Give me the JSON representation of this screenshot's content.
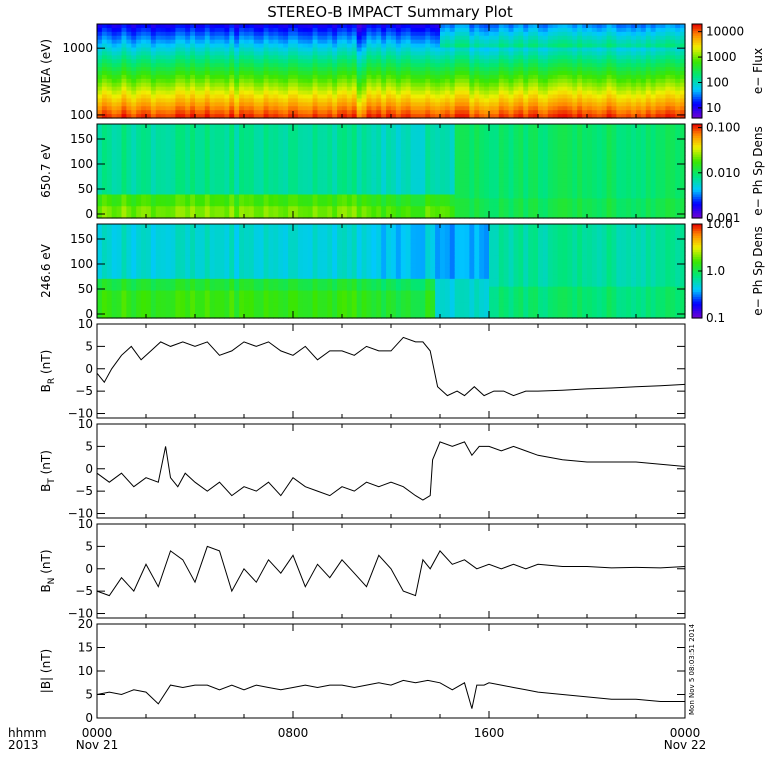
{
  "title": "STEREO-B IMPACT Summary Plot",
  "xaxis": {
    "corner_label_1": "hhmm",
    "corner_label_2": "2013",
    "tick_labels": [
      "0000",
      "0800",
      "1600",
      "0000"
    ],
    "date_labels": [
      "Nov 21",
      "",
      "",
      "Nov 22"
    ],
    "range_hours": [
      0,
      24
    ]
  },
  "stamp": "Mon Nov  5 08:03:51 2014",
  "chart_data": [
    {
      "type": "heatmap",
      "panel": "swea",
      "ylabel": "SWEA (eV)",
      "yscale": "log",
      "ylim": [
        90,
        2300
      ],
      "yticks": [
        {
          "v": 100,
          "t": "100"
        },
        {
          "v": 1000,
          "t": "1000"
        }
      ],
      "colorbar": {
        "label": "e− Flux",
        "scale": "log",
        "range": [
          4,
          20000
        ],
        "ticks": [
          {
            "v": 10000,
            "t": "10000"
          },
          {
            "v": 1000,
            "t": "1000"
          },
          {
            "v": 100,
            "t": "100"
          },
          {
            "v": 10,
            "t": "10"
          }
        ]
      }
    },
    {
      "type": "heatmap",
      "panel": "pad1",
      "ylabel": "650.7 eV",
      "ylim": [
        -8,
        180
      ],
      "yticks": [
        {
          "v": 0,
          "t": "0"
        },
        {
          "v": 50,
          "t": "50"
        },
        {
          "v": 100,
          "t": "100"
        },
        {
          "v": 150,
          "t": "150"
        }
      ],
      "colorbar": {
        "label": "e− Ph Sp Dens",
        "scale": "log",
        "range": [
          0.001,
          0.12
        ],
        "ticks": [
          {
            "v": 0.1,
            "t": "0.100"
          },
          {
            "v": 0.01,
            "t": "0.010"
          },
          {
            "v": 0.001,
            "t": "0.001"
          }
        ]
      }
    },
    {
      "type": "heatmap",
      "panel": "pad2",
      "ylabel": "246.6 eV",
      "ylim": [
        -8,
        180
      ],
      "yticks": [
        {
          "v": 0,
          "t": "0"
        },
        {
          "v": 50,
          "t": "50"
        },
        {
          "v": 100,
          "t": "100"
        },
        {
          "v": 150,
          "t": "150"
        }
      ],
      "colorbar": {
        "label": "e− Ph Sp Dens",
        "scale": "log",
        "range": [
          0.1,
          10
        ],
        "ticks": [
          {
            "v": 10,
            "t": "10.0"
          },
          {
            "v": 1,
            "t": "1.0"
          },
          {
            "v": 0.1,
            "t": "0.1"
          }
        ]
      }
    },
    {
      "type": "line",
      "panel": "br",
      "ylabel": "B",
      "ylabel_sub": "R",
      "ylabel_unit": " (nT)",
      "ylim": [
        -11,
        10
      ],
      "yticks": [
        {
          "v": 10,
          "t": "10"
        },
        {
          "v": 5,
          "t": "5"
        },
        {
          "v": 0,
          "t": "0"
        },
        {
          "v": -5,
          "t": "−5"
        },
        {
          "v": -10,
          "t": "−10"
        }
      ],
      "x": [
        0,
        0.3,
        0.6,
        1.0,
        1.4,
        1.8,
        2.2,
        2.6,
        3.0,
        3.5,
        4.0,
        4.5,
        5.0,
        5.5,
        6.0,
        6.5,
        7.0,
        7.5,
        8.0,
        8.5,
        9.0,
        9.5,
        10.0,
        10.5,
        11.0,
        11.5,
        12.0,
        12.5,
        13.0,
        13.3,
        13.6,
        13.9,
        14.3,
        14.7,
        15.0,
        15.4,
        15.8,
        16.2,
        16.6,
        17.0,
        17.5,
        18.0,
        19,
        20,
        21,
        22,
        23,
        24
      ],
      "y": [
        -1,
        -3,
        0,
        3,
        5,
        2,
        4,
        6,
        5,
        6,
        5,
        6,
        3,
        4,
        6,
        5,
        6,
        4,
        3,
        5,
        2,
        4,
        4,
        3,
        5,
        4,
        4,
        7,
        6,
        6,
        4,
        -4,
        -6,
        -5,
        -6,
        -4,
        -6,
        -5,
        -5,
        -6,
        -5,
        -5,
        -4.8,
        -4.5,
        -4.3,
        -4,
        -3.8,
        -3.5
      ]
    },
    {
      "type": "line",
      "panel": "bt",
      "ylabel": "B",
      "ylabel_sub": "T",
      "ylabel_unit": " (nT)",
      "ylim": [
        -11,
        10
      ],
      "yticks": [
        {
          "v": 10,
          "t": "10"
        },
        {
          "v": 5,
          "t": "5"
        },
        {
          "v": 0,
          "t": "0"
        },
        {
          "v": -5,
          "t": "−5"
        },
        {
          "v": -10,
          "t": "−10"
        }
      ],
      "x": [
        0,
        0.5,
        1.0,
        1.5,
        2.0,
        2.5,
        2.8,
        3.0,
        3.3,
        3.6,
        4.0,
        4.5,
        5.0,
        5.5,
        6.0,
        6.5,
        7.0,
        7.5,
        8.0,
        8.5,
        9.0,
        9.5,
        10.0,
        10.5,
        11.0,
        11.5,
        12.0,
        12.5,
        13.0,
        13.3,
        13.6,
        13.7,
        14.0,
        14.5,
        15.0,
        15.3,
        15.6,
        16.0,
        16.5,
        17.0,
        17.5,
        18.0,
        19,
        20,
        21,
        22,
        23,
        24
      ],
      "y": [
        -1,
        -3,
        -1,
        -4,
        -2,
        -3,
        5,
        -2,
        -4,
        -1,
        -3,
        -5,
        -3,
        -6,
        -4,
        -5,
        -3,
        -6,
        -2,
        -4,
        -5,
        -6,
        -4,
        -5,
        -3,
        -4,
        -3,
        -4,
        -6,
        -7,
        -6,
        2,
        6,
        5,
        6,
        3,
        5,
        5,
        4,
        5,
        4,
        3,
        2,
        1.5,
        1.5,
        1.5,
        1,
        0.5
      ]
    },
    {
      "type": "line",
      "panel": "bn",
      "ylabel": "B",
      "ylabel_sub": "N",
      "ylabel_unit": " (nT)",
      "ylim": [
        -11,
        10
      ],
      "yticks": [
        {
          "v": 10,
          "t": "10"
        },
        {
          "v": 5,
          "t": "5"
        },
        {
          "v": 0,
          "t": "0"
        },
        {
          "v": -5,
          "t": "−5"
        },
        {
          "v": -10,
          "t": "−10"
        }
      ],
      "x": [
        0,
        0.5,
        1.0,
        1.5,
        2.0,
        2.5,
        3.0,
        3.5,
        4.0,
        4.5,
        5.0,
        5.5,
        6.0,
        6.5,
        7.0,
        7.5,
        8.0,
        8.5,
        9.0,
        9.5,
        10.0,
        10.5,
        11.0,
        11.5,
        12.0,
        12.5,
        13.0,
        13.3,
        13.6,
        14.0,
        14.5,
        15.0,
        15.5,
        16.0,
        16.5,
        17.0,
        17.5,
        18.0,
        19,
        20,
        21,
        22,
        23,
        24
      ],
      "y": [
        -5,
        -6,
        -2,
        -5,
        1,
        -4,
        4,
        2,
        -3,
        5,
        4,
        -5,
        0,
        -3,
        2,
        -1,
        3,
        -4,
        1,
        -2,
        2,
        -1,
        -4,
        3,
        0,
        -5,
        -6,
        2,
        0,
        4,
        1,
        2,
        0,
        1,
        0,
        1,
        0,
        1,
        0.5,
        0.5,
        0.2,
        0.3,
        0.2,
        0.5
      ]
    },
    {
      "type": "line",
      "panel": "bmag",
      "ylabel": "|B| (nT)",
      "ylim": [
        0,
        20
      ],
      "yticks": [
        {
          "v": 20,
          "t": "20"
        },
        {
          "v": 15,
          "t": "15"
        },
        {
          "v": 10,
          "t": "10"
        },
        {
          "v": 5,
          "t": "5"
        },
        {
          "v": 0,
          "t": "0"
        }
      ],
      "x": [
        0,
        0.5,
        1.0,
        1.5,
        2.0,
        2.5,
        3.0,
        3.5,
        4.0,
        4.5,
        5.0,
        5.5,
        6.0,
        6.5,
        7.0,
        7.5,
        8.0,
        8.5,
        9.0,
        9.5,
        10.0,
        10.5,
        11.0,
        11.5,
        12.0,
        12.5,
        13.0,
        13.5,
        14.0,
        14.5,
        15.0,
        15.3,
        15.5,
        15.8,
        16.0,
        16.5,
        17.0,
        17.5,
        18.0,
        19,
        20,
        21,
        22,
        23,
        24
      ],
      "y": [
        5,
        5.5,
        5,
        6,
        5.5,
        3,
        7,
        6.5,
        7,
        7,
        6,
        7,
        6,
        7,
        6.5,
        6,
        6.5,
        7,
        6.5,
        7,
        7,
        6.5,
        7,
        7.5,
        7,
        8,
        7.5,
        8,
        7.5,
        6,
        7.5,
        2,
        7,
        7,
        7.5,
        7,
        6.5,
        6,
        5.5,
        5,
        4.5,
        4,
        4,
        3.5,
        3.5
      ]
    }
  ]
}
